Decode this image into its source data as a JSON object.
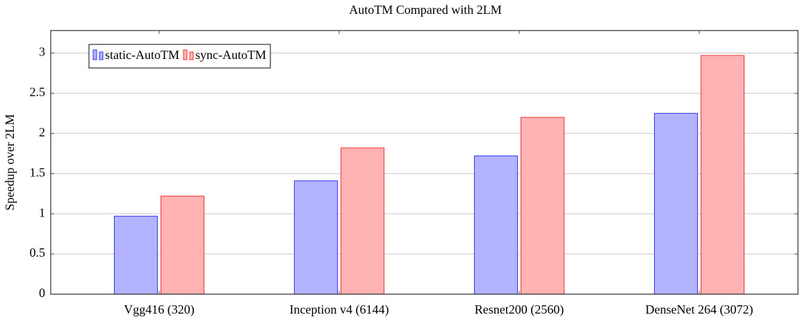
{
  "chart_data": {
    "type": "bar",
    "title": "AutoTM Compared with 2LM",
    "y_label": "Speedup over 2LM",
    "categories": [
      "Vgg416 (320)",
      "Inception v4 (6144)",
      "Resnet200 (2560)",
      "DenseNet 264 (3072)"
    ],
    "series": [
      {
        "name": "static-AutoTM",
        "color": "#b3b3ff",
        "edge_color": "#3333ee",
        "values": [
          0.97,
          1.41,
          1.72,
          2.25
        ]
      },
      {
        "name": "sync-AutoTM",
        "color": "#ffb3b3",
        "edge_color": "#ee3333",
        "values": [
          1.22,
          1.82,
          2.2,
          2.97
        ]
      }
    ],
    "ylim": [
      0,
      3.28
    ],
    "yticks": [
      0,
      0.5,
      1,
      1.5,
      2,
      2.5,
      3
    ],
    "grid": true,
    "legend": "upper left"
  }
}
